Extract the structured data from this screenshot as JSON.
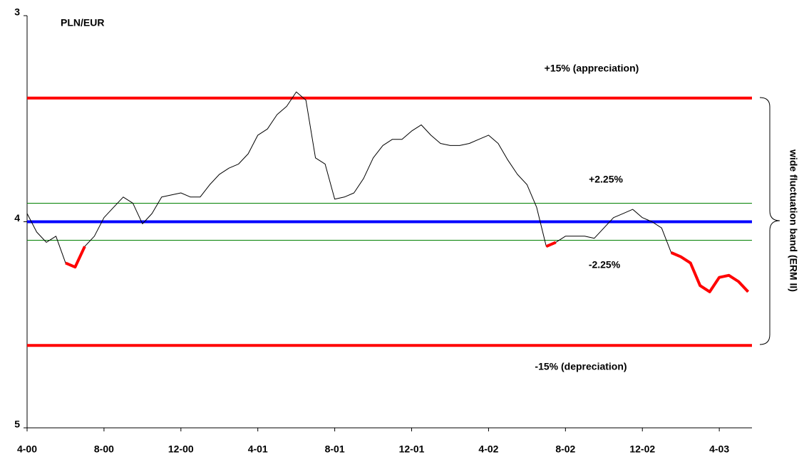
{
  "chart_data": {
    "type": "line",
    "title": "PLN/EUR",
    "x": [
      0,
      0.5,
      1,
      1.5,
      2,
      2.5,
      3,
      3.5,
      4,
      4.5,
      5,
      5.5,
      6,
      6.5,
      7,
      7.5,
      8,
      8.5,
      9,
      9.5,
      10,
      10.5,
      11,
      11.5,
      12,
      12.5,
      13,
      13.5,
      14,
      14.5,
      15,
      15.5,
      16,
      16.5,
      17,
      17.5,
      18,
      18.5,
      19,
      19.5,
      20,
      20.5,
      21,
      21.5,
      22,
      22.5,
      23,
      23.5,
      24,
      24.5,
      25,
      25.5,
      26,
      26.5,
      27,
      27.5,
      28,
      28.5,
      29,
      29.5,
      30,
      30.5,
      31,
      31.5,
      32,
      32.5,
      33,
      33.5,
      34,
      34.5,
      35,
      35.5,
      36,
      36.5,
      37,
      37.5
    ],
    "series": [
      {
        "color": "#000000",
        "width": 1,
        "values": [
          3.96,
          4.05,
          4.1,
          4.07,
          4.2,
          4.22,
          4.12,
          4.07,
          3.98,
          3.93,
          3.88,
          3.91,
          4.01,
          3.96,
          3.88,
          3.87,
          3.86,
          3.88,
          3.88,
          3.82,
          3.77,
          3.74,
          3.72,
          3.67,
          3.58,
          3.55,
          3.48,
          3.44,
          3.37,
          3.41,
          3.69,
          3.72,
          3.89,
          3.88,
          3.86,
          3.79,
          3.69,
          3.63,
          3.6,
          3.6,
          3.56,
          3.53,
          3.58,
          3.62,
          3.63,
          3.63,
          3.62,
          3.6,
          3.58,
          3.62,
          3.7,
          3.77,
          3.82,
          3.93,
          4.12,
          4.1,
          4.07,
          4.07,
          4.07,
          4.08,
          4.03,
          3.98,
          3.96,
          3.94,
          3.98,
          4.0,
          4.03,
          4.15,
          4.17,
          4.2,
          4.31,
          4.34,
          4.27,
          4.26,
          4.29,
          4.34
        ]
      },
      {
        "color": "#ff0000",
        "width": 4,
        "values": [
          null,
          null,
          null,
          null,
          4.2,
          4.22,
          4.12,
          null,
          null,
          null,
          null,
          null,
          null,
          null,
          null,
          null,
          null,
          null,
          null,
          null,
          null,
          null,
          null,
          null,
          null,
          null,
          null,
          null,
          null,
          null,
          null,
          null,
          null,
          null,
          null,
          null,
          null,
          null,
          null,
          null,
          null,
          null,
          null,
          null,
          null,
          null,
          null,
          null,
          null,
          null,
          null,
          null,
          null,
          null,
          4.12,
          4.1,
          null,
          null,
          null,
          null,
          null,
          null,
          null,
          null,
          null,
          null,
          null,
          4.15,
          4.17,
          4.2,
          4.31,
          4.34,
          4.27,
          4.26,
          4.29,
          4.34
        ]
      }
    ],
    "xlim": [
      0,
      37.7
    ],
    "xticks": [
      {
        "value": 0,
        "label": "4-00"
      },
      {
        "value": 4,
        "label": "8-00"
      },
      {
        "value": 8,
        "label": "12-00"
      },
      {
        "value": 12,
        "label": "4-01"
      },
      {
        "value": 16,
        "label": "8-01"
      },
      {
        "value": 20,
        "label": "12-01"
      },
      {
        "value": 24,
        "label": "4-02"
      },
      {
        "value": 28,
        "label": "8-02"
      },
      {
        "value": 32,
        "label": "12-02"
      },
      {
        "value": 36,
        "label": "4-03"
      }
    ],
    "ylim": [
      3,
      5
    ],
    "y_inverted": true,
    "yticks": [
      3,
      4,
      5
    ],
    "reference_lines": [
      {
        "value": 3.4,
        "color": "#ff0000",
        "width": 4,
        "label": "+15% (appreciation)"
      },
      {
        "value": 3.91,
        "color": "#008000",
        "width": 1,
        "label": "+2.25%"
      },
      {
        "value": 4.0,
        "color": "#0000ff",
        "width": 4
      },
      {
        "value": 4.09,
        "color": "#008000",
        "width": 1,
        "label": "-2.25%"
      },
      {
        "value": 4.6,
        "color": "#ff0000",
        "width": 4,
        "label": "-15% (depreciation)"
      }
    ],
    "band_annotation": "wide fluctuation band (ERM II)"
  }
}
